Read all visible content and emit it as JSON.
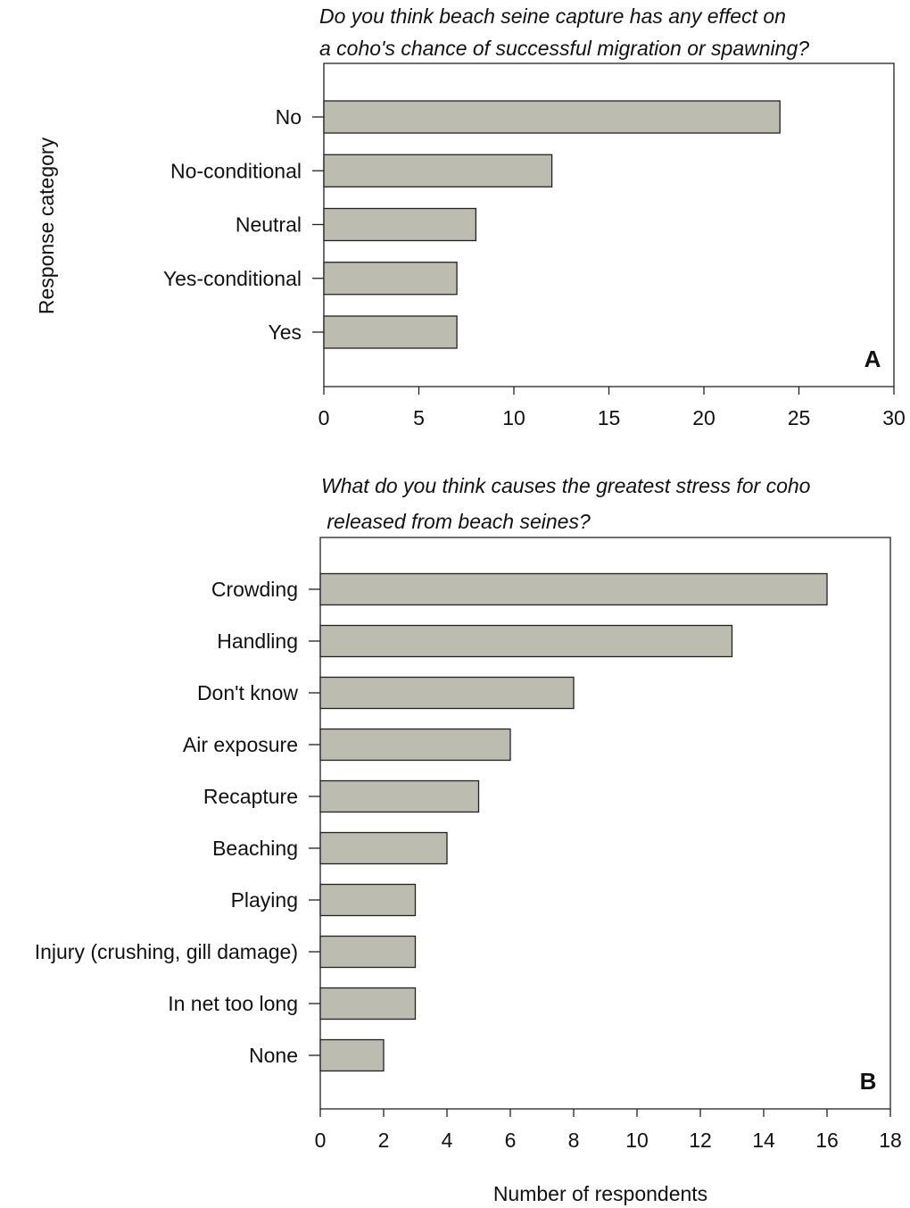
{
  "chart_data": [
    {
      "type": "bar",
      "orientation": "horizontal",
      "title_lines": [
        "Do you think beach seine capture has any effect on",
        "a coho's chance of successful migration or spawning?"
      ],
      "panel_label": "A",
      "ylabel": "Response category",
      "xlabel": "",
      "categories": [
        "No",
        "No-conditional",
        "Neutral",
        "Yes-conditional",
        "Yes"
      ],
      "values": [
        24,
        12,
        8,
        7,
        7
      ],
      "xlim": [
        0,
        30
      ],
      "xticks": [
        0,
        5,
        10,
        15,
        20,
        25,
        30
      ],
      "bar_color": "#bcbcb0",
      "grid": false,
      "legend": "none"
    },
    {
      "type": "bar",
      "orientation": "horizontal",
      "title_lines": [
        "What do you think causes the greatest stress for coho",
        " released from beach seines?"
      ],
      "panel_label": "B",
      "ylabel": "",
      "xlabel": "Number of respondents",
      "categories": [
        "Crowding",
        "Handling",
        "Don't know",
        "Air exposure",
        "Recapture",
        "Beaching",
        "Playing",
        "Injury (crushing, gill damage)",
        "In net too long",
        "None"
      ],
      "values": [
        16,
        13,
        8,
        6,
        5,
        4,
        3,
        3,
        3,
        2
      ],
      "xlim": [
        0,
        18
      ],
      "xticks": [
        0,
        2,
        4,
        6,
        8,
        10,
        12,
        14,
        16,
        18
      ],
      "bar_color": "#bcbcb0",
      "grid": false,
      "legend": "none"
    }
  ]
}
